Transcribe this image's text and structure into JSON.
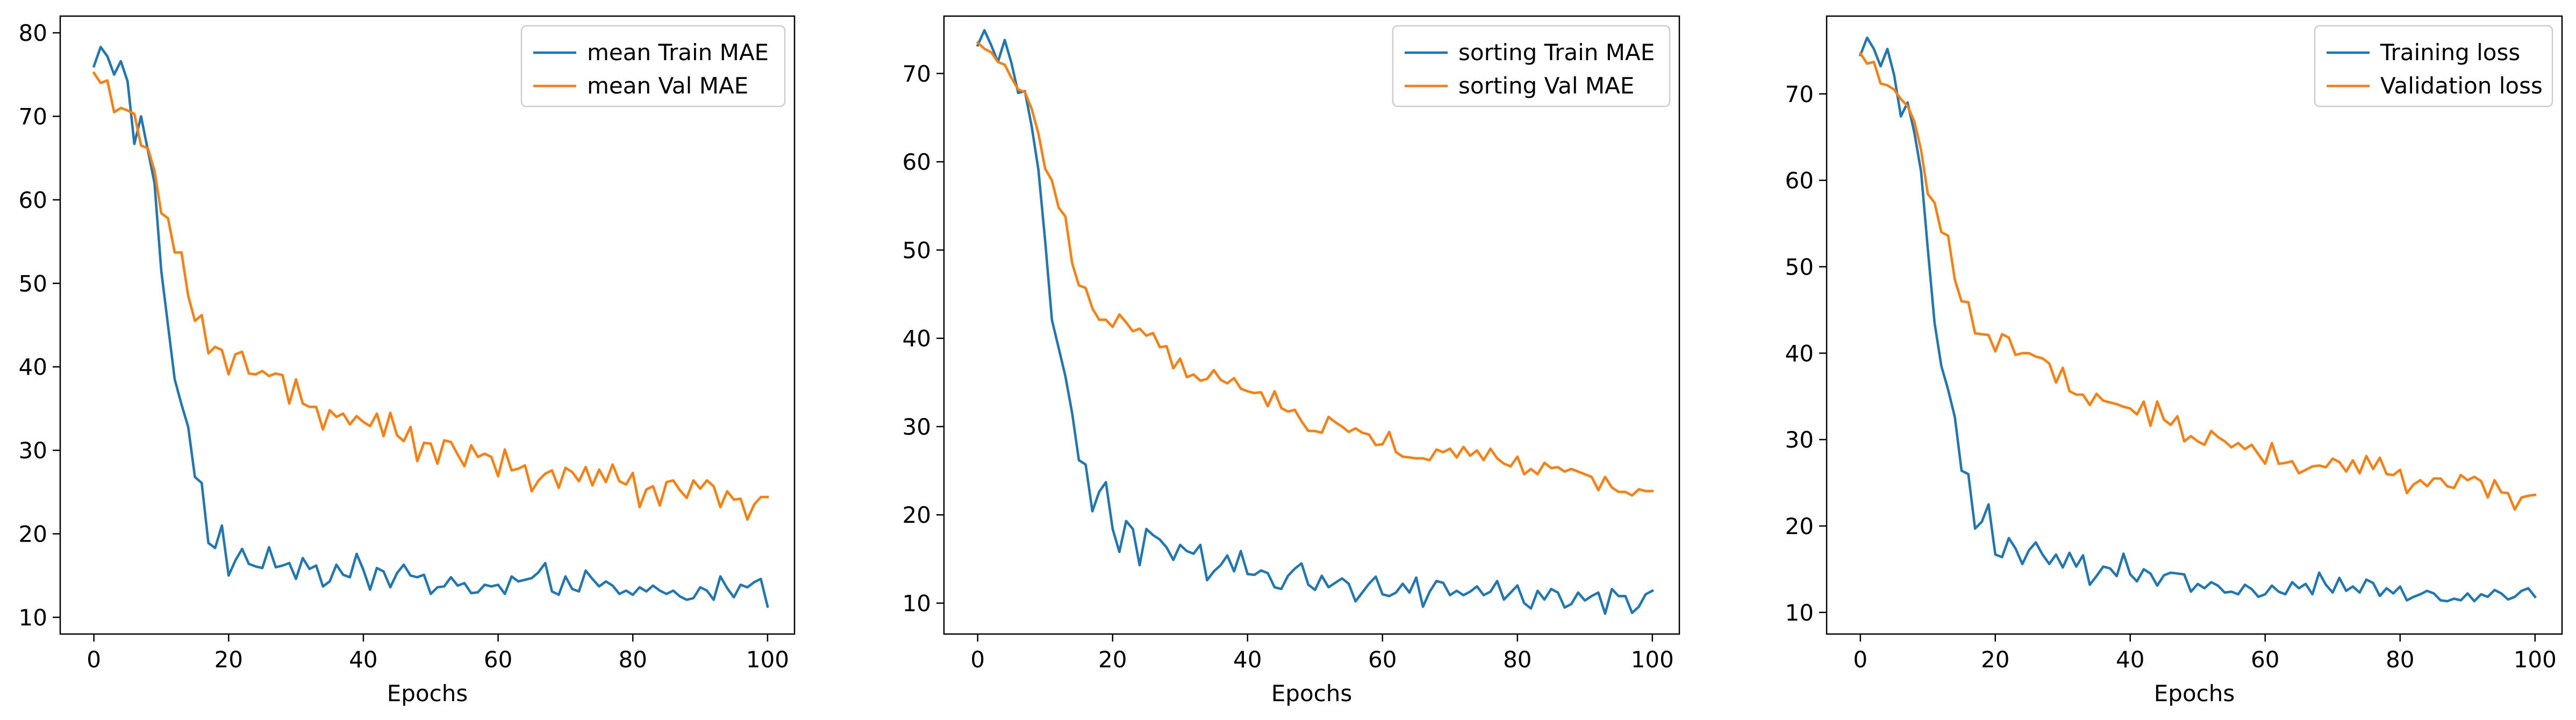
{
  "chart_data": [
    {
      "type": "line",
      "xlabel": "Epochs",
      "ylabel": "",
      "xlim": [
        -5,
        104
      ],
      "ylim": [
        8,
        82
      ],
      "xticks": [
        0,
        20,
        40,
        60,
        80,
        100
      ],
      "yticks": [
        10,
        20,
        30,
        40,
        50,
        60,
        70,
        80
      ],
      "legend": "top-right",
      "grid": false,
      "series": [
        {
          "name": "mean Train MAE",
          "color": "#1f77b4",
          "values": [
            76,
            78.3,
            77.2,
            75,
            76.6,
            74.2,
            66.7,
            70,
            66,
            62,
            51.5,
            45,
            38.5,
            35.5,
            32.8,
            26.8,
            26.1,
            18.9,
            18.3,
            21,
            15,
            16.8,
            18.2,
            16.4,
            16.1,
            15.9,
            18.4,
            16,
            16.2,
            16.5,
            14.6,
            17.1,
            15.8,
            16.2,
            13.7,
            14.3,
            16.3,
            15.1,
            14.8,
            17.6,
            15.7,
            13.3,
            15.9,
            15.5,
            13.6,
            15.3,
            16.3,
            15,
            14.8,
            15.1,
            12.8,
            13.6,
            13.7,
            14.8,
            13.8,
            14.1,
            12.9,
            13,
            13.9,
            13.7,
            13.9,
            12.8,
            14.9,
            14.3,
            14.5,
            14.7,
            15.4,
            16.5,
            13.1,
            12.7,
            14.9,
            13.4,
            13.1,
            15.6,
            14.6,
            13.7,
            14.3,
            13.8,
            12.8,
            13.2,
            12.7,
            13.6,
            13.1,
            13.8,
            13.2,
            12.8,
            13.2,
            12.5,
            12.1,
            12.3,
            13.6,
            13.2,
            12.1,
            14.9,
            13.5,
            12.4,
            13.9,
            13.6,
            14.2,
            14.6,
            11.3
          ]
        },
        {
          "name": "mean Val MAE",
          "color": "#ff7f0e",
          "values": [
            75.2,
            74,
            74.3,
            70.5,
            71,
            70.7,
            70.3,
            66.5,
            66.2,
            63.5,
            58.4,
            57.8,
            53.7,
            53.7,
            48.5,
            45.5,
            46.2,
            41.6,
            42.4,
            42,
            39.1,
            41.5,
            41.8,
            39.2,
            39.1,
            39.5,
            38.9,
            39.2,
            39,
            35.6,
            38.5,
            35.6,
            35.2,
            35.2,
            32.5,
            34.8,
            34,
            34.4,
            33.1,
            34.1,
            33.4,
            32.9,
            34.4,
            31.7,
            34.5,
            31.8,
            31.1,
            32.8,
            28.7,
            30.9,
            30.8,
            28.4,
            31.2,
            31,
            29.5,
            28.1,
            30.6,
            29.2,
            29.6,
            29.2,
            26.9,
            30.1,
            27.6,
            27.8,
            28.2,
            25.1,
            26.4,
            27.2,
            27.6,
            25.5,
            27.9,
            27.4,
            26.3,
            28,
            25.8,
            27.7,
            26.2,
            28.3,
            26.3,
            25.9,
            27.3,
            23.2,
            25.3,
            25.7,
            23.4,
            26.2,
            26.4,
            25.2,
            24.3,
            26.4,
            25.4,
            26.4,
            25.7,
            23.2,
            25.1,
            24.1,
            24.2,
            21.7,
            23.5,
            24.4,
            24.4
          ]
        }
      ]
    },
    {
      "type": "line",
      "xlabel": "Epochs",
      "ylabel": "",
      "xlim": [
        -5,
        104
      ],
      "ylim": [
        6.5,
        76.5
      ],
      "xticks": [
        0,
        20,
        40,
        60,
        80,
        100
      ],
      "yticks": [
        10,
        20,
        30,
        40,
        50,
        60,
        70
      ],
      "legend": "top-right",
      "grid": false,
      "series": [
        {
          "name": "sorting Train MAE",
          "color": "#1f77b4",
          "values": [
            73.2,
            74.9,
            73.2,
            71.3,
            73.8,
            71.2,
            67.8,
            68,
            64,
            59.1,
            51,
            42.1,
            38.9,
            35.7,
            31.5,
            26.2,
            25.7,
            20.4,
            22.6,
            23.7,
            18.4,
            15.8,
            19.3,
            18.4,
            14.3,
            18.4,
            17.7,
            17.2,
            16.3,
            14.9,
            16.6,
            15.9,
            15.6,
            16.6,
            12.6,
            13.6,
            14.3,
            15.4,
            13.6,
            15.9,
            13.3,
            13.2,
            13.7,
            13.4,
            11.8,
            11.6,
            13.1,
            13.9,
            14.5,
            12.1,
            11.5,
            13.1,
            11.8,
            12.3,
            12.8,
            12.2,
            10.2,
            11.2,
            12.2,
            13,
            11,
            10.8,
            11.2,
            12.2,
            11.2,
            12.9,
            9.6,
            11.3,
            12.5,
            12.3,
            10.9,
            11.4,
            10.9,
            11.3,
            11.9,
            10.9,
            11.3,
            12.5,
            10.4,
            11.2,
            12,
            10,
            9.4,
            11.4,
            10.4,
            11.6,
            11.2,
            9.5,
            9.9,
            11.2,
            10.3,
            10.8,
            11.2,
            8.8,
            11.6,
            10.8,
            10.8,
            8.9,
            9.6,
            11,
            11.4
          ]
        },
        {
          "name": "sorting Val MAE",
          "color": "#ff7f0e",
          "values": [
            73.5,
            72.8,
            72.4,
            71.3,
            71,
            69.5,
            68.2,
            67.9,
            66,
            63.2,
            59.2,
            57.9,
            54.8,
            53.8,
            48.5,
            46,
            45.7,
            43.4,
            42.1,
            42.1,
            41.3,
            42.7,
            41.8,
            40.8,
            41.1,
            40.3,
            40.6,
            39,
            39.1,
            36.6,
            37.7,
            35.6,
            35.9,
            35.2,
            35.4,
            36.4,
            35.3,
            34.9,
            35.5,
            34.3,
            34,
            33.8,
            33.9,
            32.3,
            34,
            32.1,
            31.7,
            31.9,
            30.6,
            29.5,
            29.5,
            29.3,
            31.1,
            30.5,
            30,
            29.4,
            29.8,
            29.3,
            29.1,
            27.9,
            28,
            29.4,
            27.1,
            26.6,
            26.5,
            26.4,
            26.4,
            26.2,
            27.4,
            27.1,
            27.5,
            26.5,
            27.7,
            26.7,
            27.3,
            26.2,
            27.5,
            26.4,
            25.8,
            25.5,
            26.6,
            24.6,
            25.2,
            24.6,
            25.9,
            25.3,
            25.4,
            24.9,
            25.2,
            24.9,
            24.6,
            24.3,
            22.8,
            24.3,
            23.1,
            22.6,
            22.6,
            22.2,
            22.9,
            22.7,
            22.7
          ]
        }
      ]
    },
    {
      "type": "line",
      "xlabel": "Epochs",
      "ylabel": "",
      "xlim": [
        -5,
        104
      ],
      "ylim": [
        7.5,
        79
      ],
      "xticks": [
        0,
        20,
        40,
        60,
        80,
        100
      ],
      "yticks": [
        10,
        20,
        30,
        40,
        50,
        60,
        70
      ],
      "legend": "top-right",
      "grid": false,
      "series": [
        {
          "name": "Training loss",
          "color": "#1f77b4",
          "values": [
            74.5,
            76.5,
            75.2,
            73.2,
            75.2,
            72.2,
            67.4,
            69,
            65.5,
            61,
            52,
            43.5,
            38.5,
            35.8,
            32.6,
            26.4,
            26,
            19.7,
            20.5,
            22.5,
            16.7,
            16.4,
            18.6,
            17.4,
            15.6,
            17.2,
            18.1,
            16.7,
            15.6,
            16.7,
            15.2,
            16.9,
            15.3,
            16.6,
            13.2,
            14.2,
            15.3,
            15.1,
            14.2,
            16.8,
            14.4,
            13.6,
            15,
            14.5,
            13.1,
            14.3,
            14.6,
            14.5,
            14.4,
            12.4,
            13.3,
            12.8,
            13.5,
            13.1,
            12.3,
            12.4,
            12.1,
            13.2,
            12.7,
            11.8,
            12.1,
            13.1,
            12.4,
            12.1,
            13.5,
            12.8,
            13.3,
            12.1,
            14.6,
            13.2,
            12.3,
            14,
            12.5,
            13,
            12.3,
            13.8,
            13.4,
            11.9,
            12.8,
            12.2,
            13,
            11.4,
            11.8,
            12.1,
            12.5,
            12.2,
            11.4,
            11.3,
            11.6,
            11.4,
            12.2,
            11.3,
            12.1,
            11.8,
            12.6,
            12.2,
            11.5,
            11.8,
            12.5,
            12.8,
            11.8
          ]
        },
        {
          "name": "Validation loss",
          "color": "#ff7f0e",
          "values": [
            74.7,
            73.5,
            73.7,
            71.2,
            71,
            70.5,
            69.4,
            68.6,
            66.8,
            63.5,
            58.4,
            57.4,
            54,
            53.6,
            48.5,
            46,
            45.9,
            42.3,
            42.2,
            42.1,
            40.2,
            42.2,
            41.8,
            39.8,
            40,
            40,
            39.6,
            39.4,
            38.8,
            36.6,
            38.3,
            35.6,
            35.2,
            35.2,
            34,
            35.3,
            34.5,
            34.3,
            34.1,
            33.8,
            33.6,
            32.9,
            34.4,
            31.6,
            34.4,
            32.3,
            31.7,
            32.7,
            29.8,
            30.4,
            29.8,
            29.4,
            31,
            30.3,
            29.8,
            29.1,
            29.6,
            28.9,
            29.4,
            28.3,
            27.2,
            29.6,
            27.2,
            27.3,
            27.5,
            26.1,
            26.5,
            26.9,
            27,
            26.8,
            27.8,
            27.4,
            26.3,
            27.6,
            26.1,
            28.1,
            26.6,
            27.9,
            26,
            25.9,
            26.5,
            23.8,
            24.8,
            25.3,
            24.6,
            25.5,
            25.5,
            24.6,
            24.4,
            25.9,
            25.3,
            25.7,
            25.2,
            23.3,
            25.3,
            23.9,
            23.8,
            21.9,
            23.3,
            23.5,
            23.6
          ]
        }
      ]
    }
  ]
}
